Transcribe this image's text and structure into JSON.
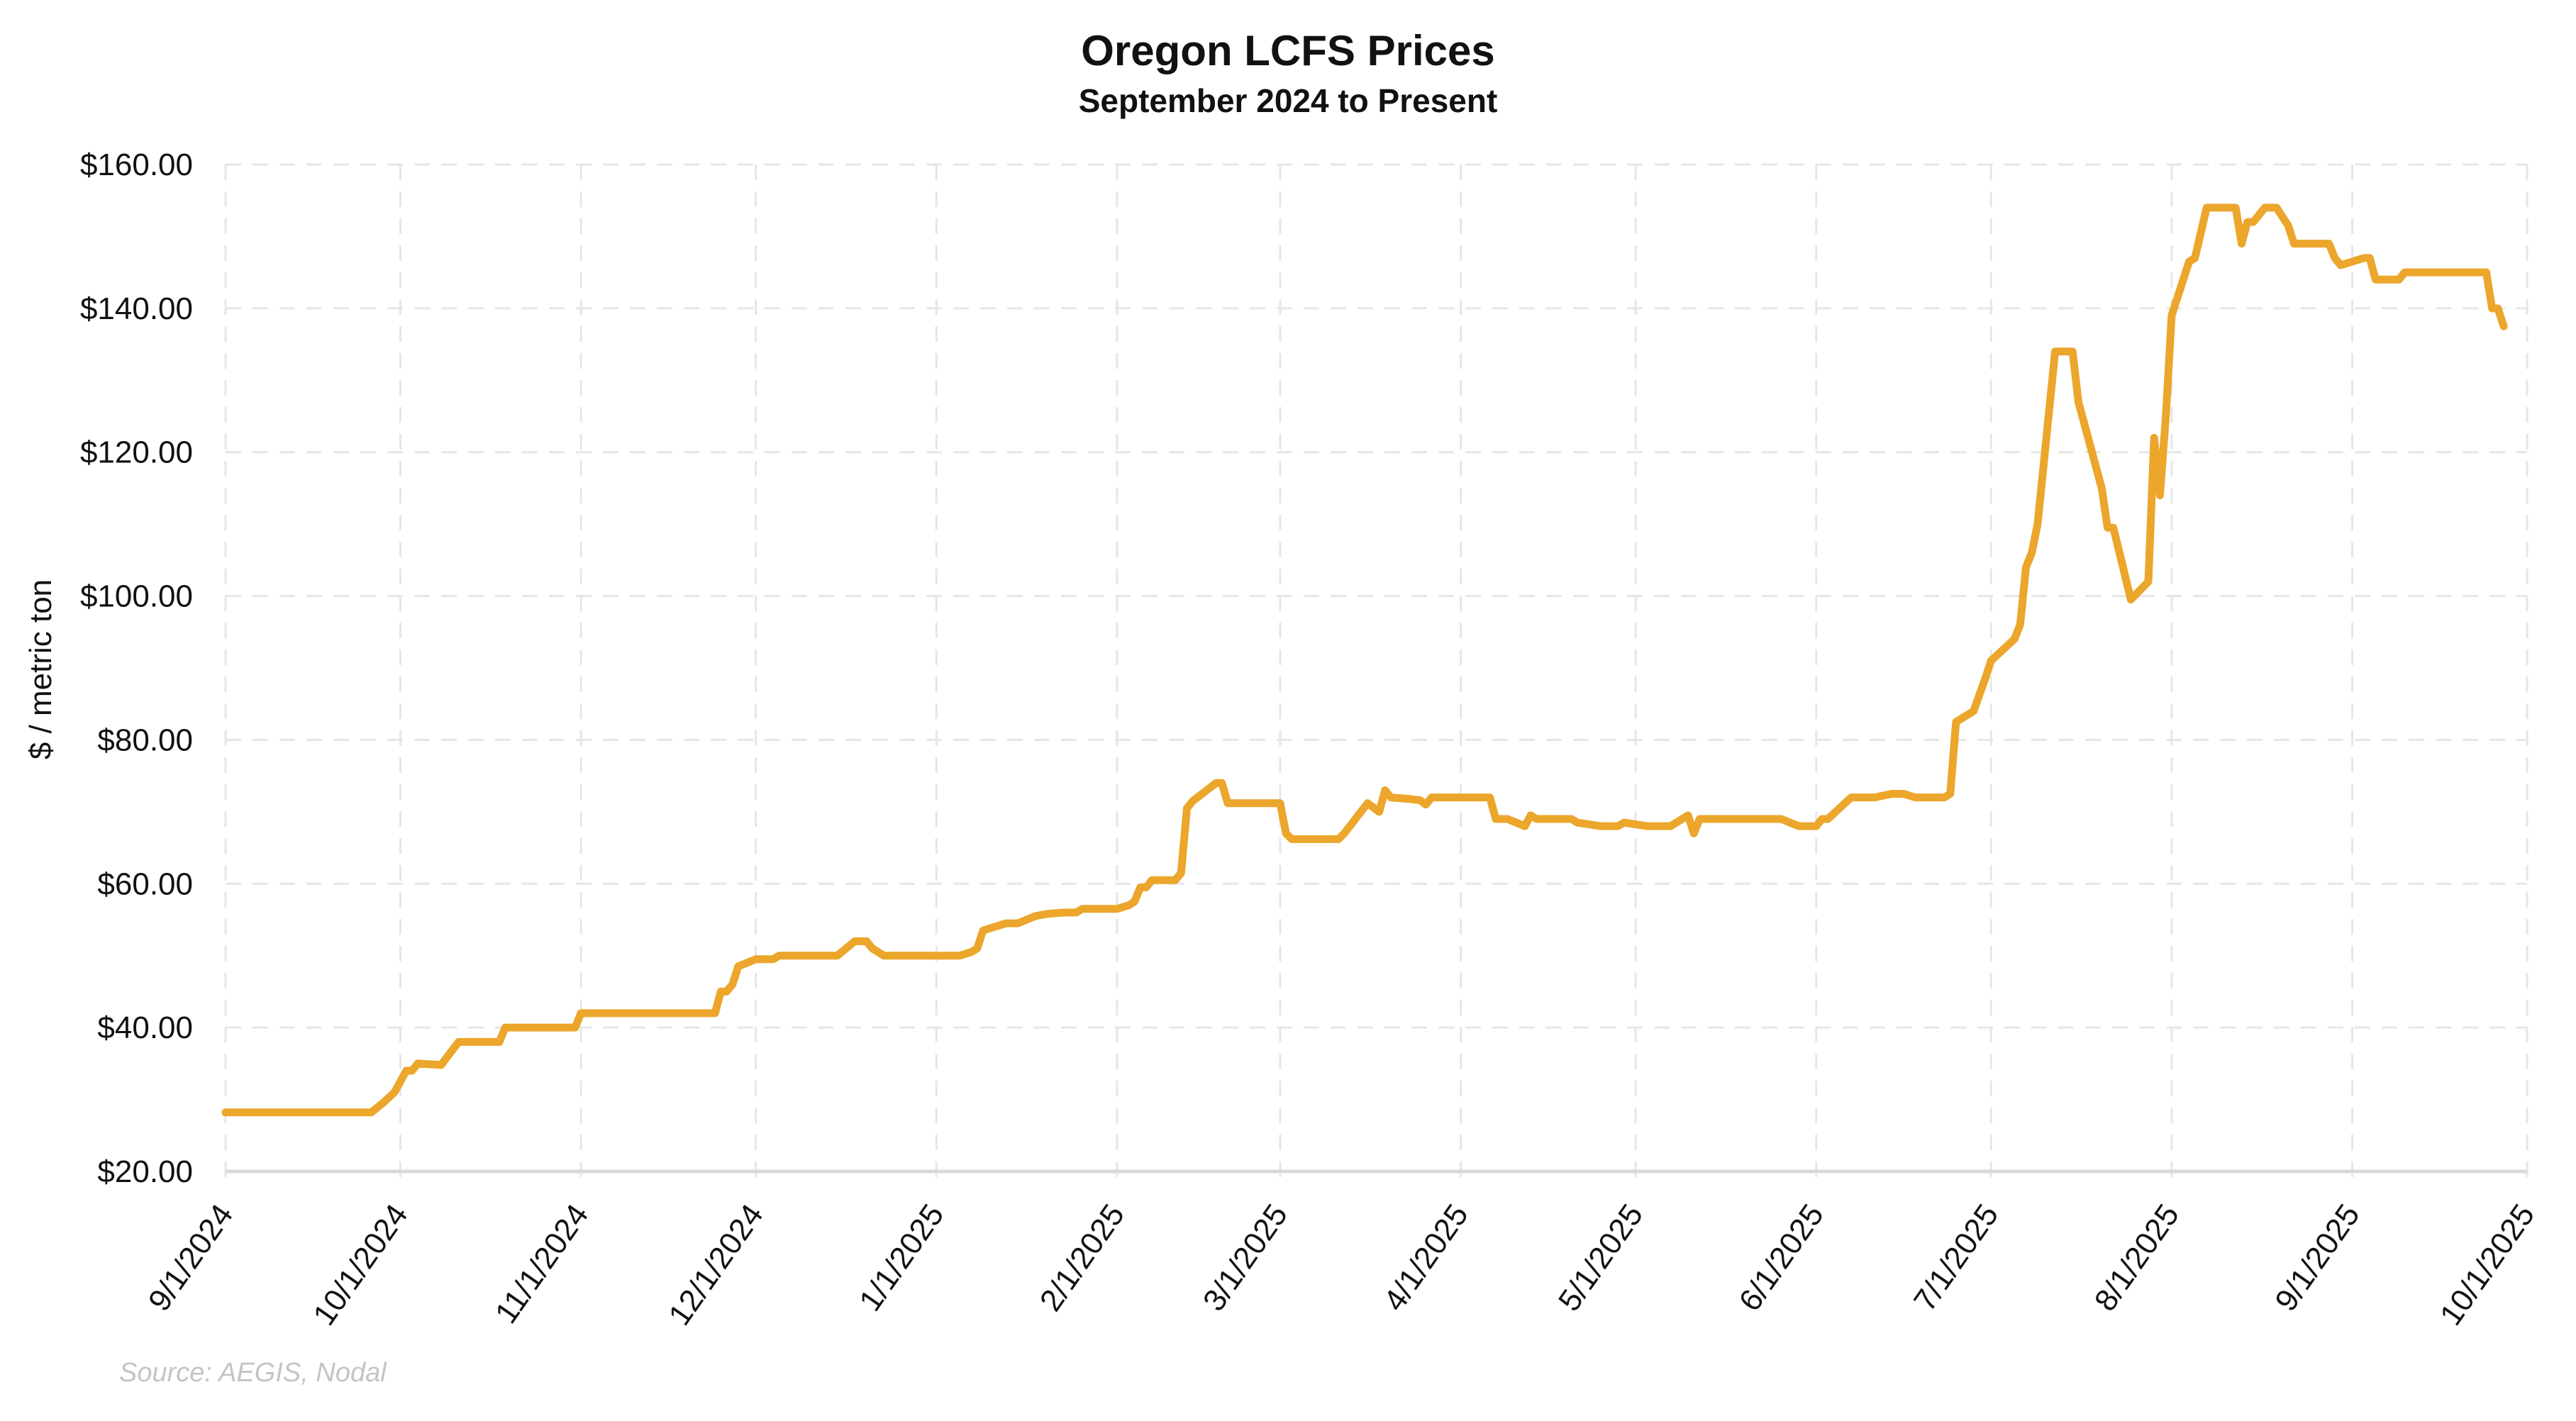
{
  "chart_data": {
    "type": "line",
    "title": "Oregon LCFS Prices",
    "subtitle": "September 2024 to Present",
    "xlabel": "",
    "ylabel": "$ / metric ton",
    "source": "Source: AEGIS, Nodal",
    "ylim": [
      20,
      160
    ],
    "yticks": [
      20,
      40,
      60,
      80,
      100,
      120,
      140,
      160
    ],
    "ytick_labels": [
      "$20.00",
      "$40.00",
      "$60.00",
      "$80.00",
      "$100.00",
      "$120.00",
      "$140.00",
      "$160.00"
    ],
    "x_start": "2024-09-01",
    "x_end": "2025-10-01",
    "xticks": [
      "2024-09-01",
      "2024-10-01",
      "2024-11-01",
      "2024-12-01",
      "2025-01-01",
      "2025-02-01",
      "2025-03-01",
      "2025-04-01",
      "2025-05-01",
      "2025-06-01",
      "2025-07-01",
      "2025-08-01",
      "2025-09-01",
      "2025-10-01"
    ],
    "xtick_labels": [
      "9/1/2024",
      "10/1/2024",
      "11/1/2024",
      "12/1/2024",
      "1/1/2025",
      "2/1/2025",
      "3/1/2025",
      "4/1/2025",
      "5/1/2025",
      "6/1/2025",
      "7/1/2025",
      "8/1/2025",
      "9/1/2025",
      "10/1/2025"
    ],
    "grid": true,
    "legend": "none",
    "series": [
      {
        "name": "Oregon LCFS Price",
        "color": "#EBA62B",
        "points": [
          [
            "2024-09-01",
            28.2
          ],
          [
            "2024-09-26",
            28.2
          ],
          [
            "2024-09-28",
            29.5
          ],
          [
            "2024-09-30",
            31.0
          ],
          [
            "2024-10-01",
            32.5
          ],
          [
            "2024-10-02",
            34.0
          ],
          [
            "2024-10-03",
            34.0
          ],
          [
            "2024-10-04",
            35.0
          ],
          [
            "2024-10-08",
            34.8
          ],
          [
            "2024-10-11",
            38.0
          ],
          [
            "2024-10-18",
            38.0
          ],
          [
            "2024-10-19",
            40.0
          ],
          [
            "2024-10-31",
            40.0
          ],
          [
            "2024-11-01",
            42.0
          ],
          [
            "2024-11-24",
            42.0
          ],
          [
            "2024-11-25",
            45.0
          ],
          [
            "2024-11-26",
            45.0
          ],
          [
            "2024-11-27",
            46.0
          ],
          [
            "2024-11-28",
            48.5
          ],
          [
            "2024-12-01",
            49.5
          ],
          [
            "2024-12-04",
            49.5
          ],
          [
            "2024-12-05",
            50.0
          ],
          [
            "2024-12-15",
            50.0
          ],
          [
            "2024-12-18",
            52.0
          ],
          [
            "2024-12-20",
            52.0
          ],
          [
            "2024-12-21",
            51.0
          ],
          [
            "2024-12-23",
            50.0
          ],
          [
            "2024-12-31",
            50.0
          ],
          [
            "2025-01-05",
            50.0
          ],
          [
            "2025-01-07",
            50.5
          ],
          [
            "2025-01-08",
            51.0
          ],
          [
            "2025-01-09",
            53.5
          ],
          [
            "2025-01-11",
            54.0
          ],
          [
            "2025-01-13",
            54.5
          ],
          [
            "2025-01-15",
            54.5
          ],
          [
            "2025-01-18",
            55.5
          ],
          [
            "2025-01-20",
            55.8
          ],
          [
            "2025-01-23",
            56.0
          ],
          [
            "2025-01-25",
            56.0
          ],
          [
            "2025-01-26",
            56.5
          ],
          [
            "2025-01-31",
            56.5
          ],
          [
            "2025-02-01",
            56.5
          ],
          [
            "2025-02-03",
            57.0
          ],
          [
            "2025-02-04",
            57.5
          ],
          [
            "2025-02-05",
            59.5
          ],
          [
            "2025-02-06",
            59.5
          ],
          [
            "2025-02-07",
            60.5
          ],
          [
            "2025-02-11",
            60.5
          ],
          [
            "2025-02-12",
            61.5
          ],
          [
            "2025-02-13",
            70.5
          ],
          [
            "2025-02-14",
            71.5
          ],
          [
            "2025-02-18",
            74.0
          ],
          [
            "2025-02-19",
            74.0
          ],
          [
            "2025-02-20",
            71.2
          ],
          [
            "2025-02-28",
            71.2
          ],
          [
            "2025-03-01",
            71.2
          ],
          [
            "2025-03-02",
            67.0
          ],
          [
            "2025-03-03",
            66.2
          ],
          [
            "2025-03-11",
            66.2
          ],
          [
            "2025-03-12",
            67.0
          ],
          [
            "2025-03-16",
            71.2
          ],
          [
            "2025-03-18",
            70.0
          ],
          [
            "2025-03-19",
            73.0
          ],
          [
            "2025-03-20",
            72.0
          ],
          [
            "2025-03-23",
            71.8
          ],
          [
            "2025-03-25",
            71.6
          ],
          [
            "2025-03-26",
            71.0
          ],
          [
            "2025-03-27",
            72.0
          ],
          [
            "2025-04-01",
            72.0
          ],
          [
            "2025-04-06",
            72.0
          ],
          [
            "2025-04-07",
            69.0
          ],
          [
            "2025-04-09",
            69.0
          ],
          [
            "2025-04-12",
            68.0
          ],
          [
            "2025-04-13",
            69.5
          ],
          [
            "2025-04-14",
            69.0
          ],
          [
            "2025-04-20",
            69.0
          ],
          [
            "2025-04-21",
            68.5
          ],
          [
            "2025-04-25",
            68.0
          ],
          [
            "2025-04-28",
            68.0
          ],
          [
            "2025-04-29",
            68.5
          ],
          [
            "2025-05-03",
            68.0
          ],
          [
            "2025-05-07",
            68.0
          ],
          [
            "2025-05-10",
            69.5
          ],
          [
            "2025-05-11",
            67.0
          ],
          [
            "2025-05-12",
            69.0
          ],
          [
            "2025-05-26",
            69.0
          ],
          [
            "2025-05-29",
            68.0
          ],
          [
            "2025-05-31",
            68.0
          ],
          [
            "2025-06-01",
            68.0
          ],
          [
            "2025-06-02",
            69.0
          ],
          [
            "2025-06-03",
            69.0
          ],
          [
            "2025-06-07",
            72.0
          ],
          [
            "2025-06-11",
            72.0
          ],
          [
            "2025-06-14",
            72.5
          ],
          [
            "2025-06-16",
            72.5
          ],
          [
            "2025-06-18",
            72.0
          ],
          [
            "2025-06-23",
            72.0
          ],
          [
            "2025-06-24",
            72.5
          ],
          [
            "2025-06-25",
            82.5
          ],
          [
            "2025-06-28",
            84.0
          ],
          [
            "2025-06-30",
            88.5
          ],
          [
            "2025-07-01",
            91.0
          ],
          [
            "2025-07-05",
            94.0
          ],
          [
            "2025-07-06",
            96.0
          ],
          [
            "2025-07-07",
            104.0
          ],
          [
            "2025-07-08",
            106.0
          ],
          [
            "2025-07-09",
            110.0
          ],
          [
            "2025-07-12",
            134.0
          ],
          [
            "2025-07-15",
            134.0
          ],
          [
            "2025-07-16",
            127.0
          ],
          [
            "2025-07-20",
            115.0
          ],
          [
            "2025-07-21",
            109.5
          ],
          [
            "2025-07-22",
            109.5
          ],
          [
            "2025-07-25",
            99.5
          ],
          [
            "2025-07-28",
            102.0
          ],
          [
            "2025-07-29",
            122.0
          ],
          [
            "2025-07-30",
            114.0
          ],
          [
            "2025-07-31",
            125.0
          ],
          [
            "2025-08-01",
            139.0
          ],
          [
            "2025-08-02",
            141.5
          ],
          [
            "2025-08-04",
            146.5
          ],
          [
            "2025-08-05",
            147.0
          ],
          [
            "2025-08-07",
            154.0
          ],
          [
            "2025-08-12",
            154.0
          ],
          [
            "2025-08-13",
            149.0
          ],
          [
            "2025-08-14",
            152.0
          ],
          [
            "2025-08-15",
            152.0
          ],
          [
            "2025-08-17",
            154.0
          ],
          [
            "2025-08-19",
            154.0
          ],
          [
            "2025-08-21",
            151.5
          ],
          [
            "2025-08-22",
            149.0
          ],
          [
            "2025-08-28",
            149.0
          ],
          [
            "2025-08-29",
            147.0
          ],
          [
            "2025-08-30",
            146.0
          ],
          [
            "2025-09-03",
            147.0
          ],
          [
            "2025-09-04",
            147.0
          ],
          [
            "2025-09-05",
            144.0
          ],
          [
            "2025-09-09",
            144.0
          ],
          [
            "2025-09-10",
            145.0
          ],
          [
            "2025-09-24",
            145.0
          ],
          [
            "2025-09-25",
            140.0
          ],
          [
            "2025-09-26",
            140.0
          ],
          [
            "2025-09-27",
            137.5
          ]
        ]
      }
    ]
  }
}
